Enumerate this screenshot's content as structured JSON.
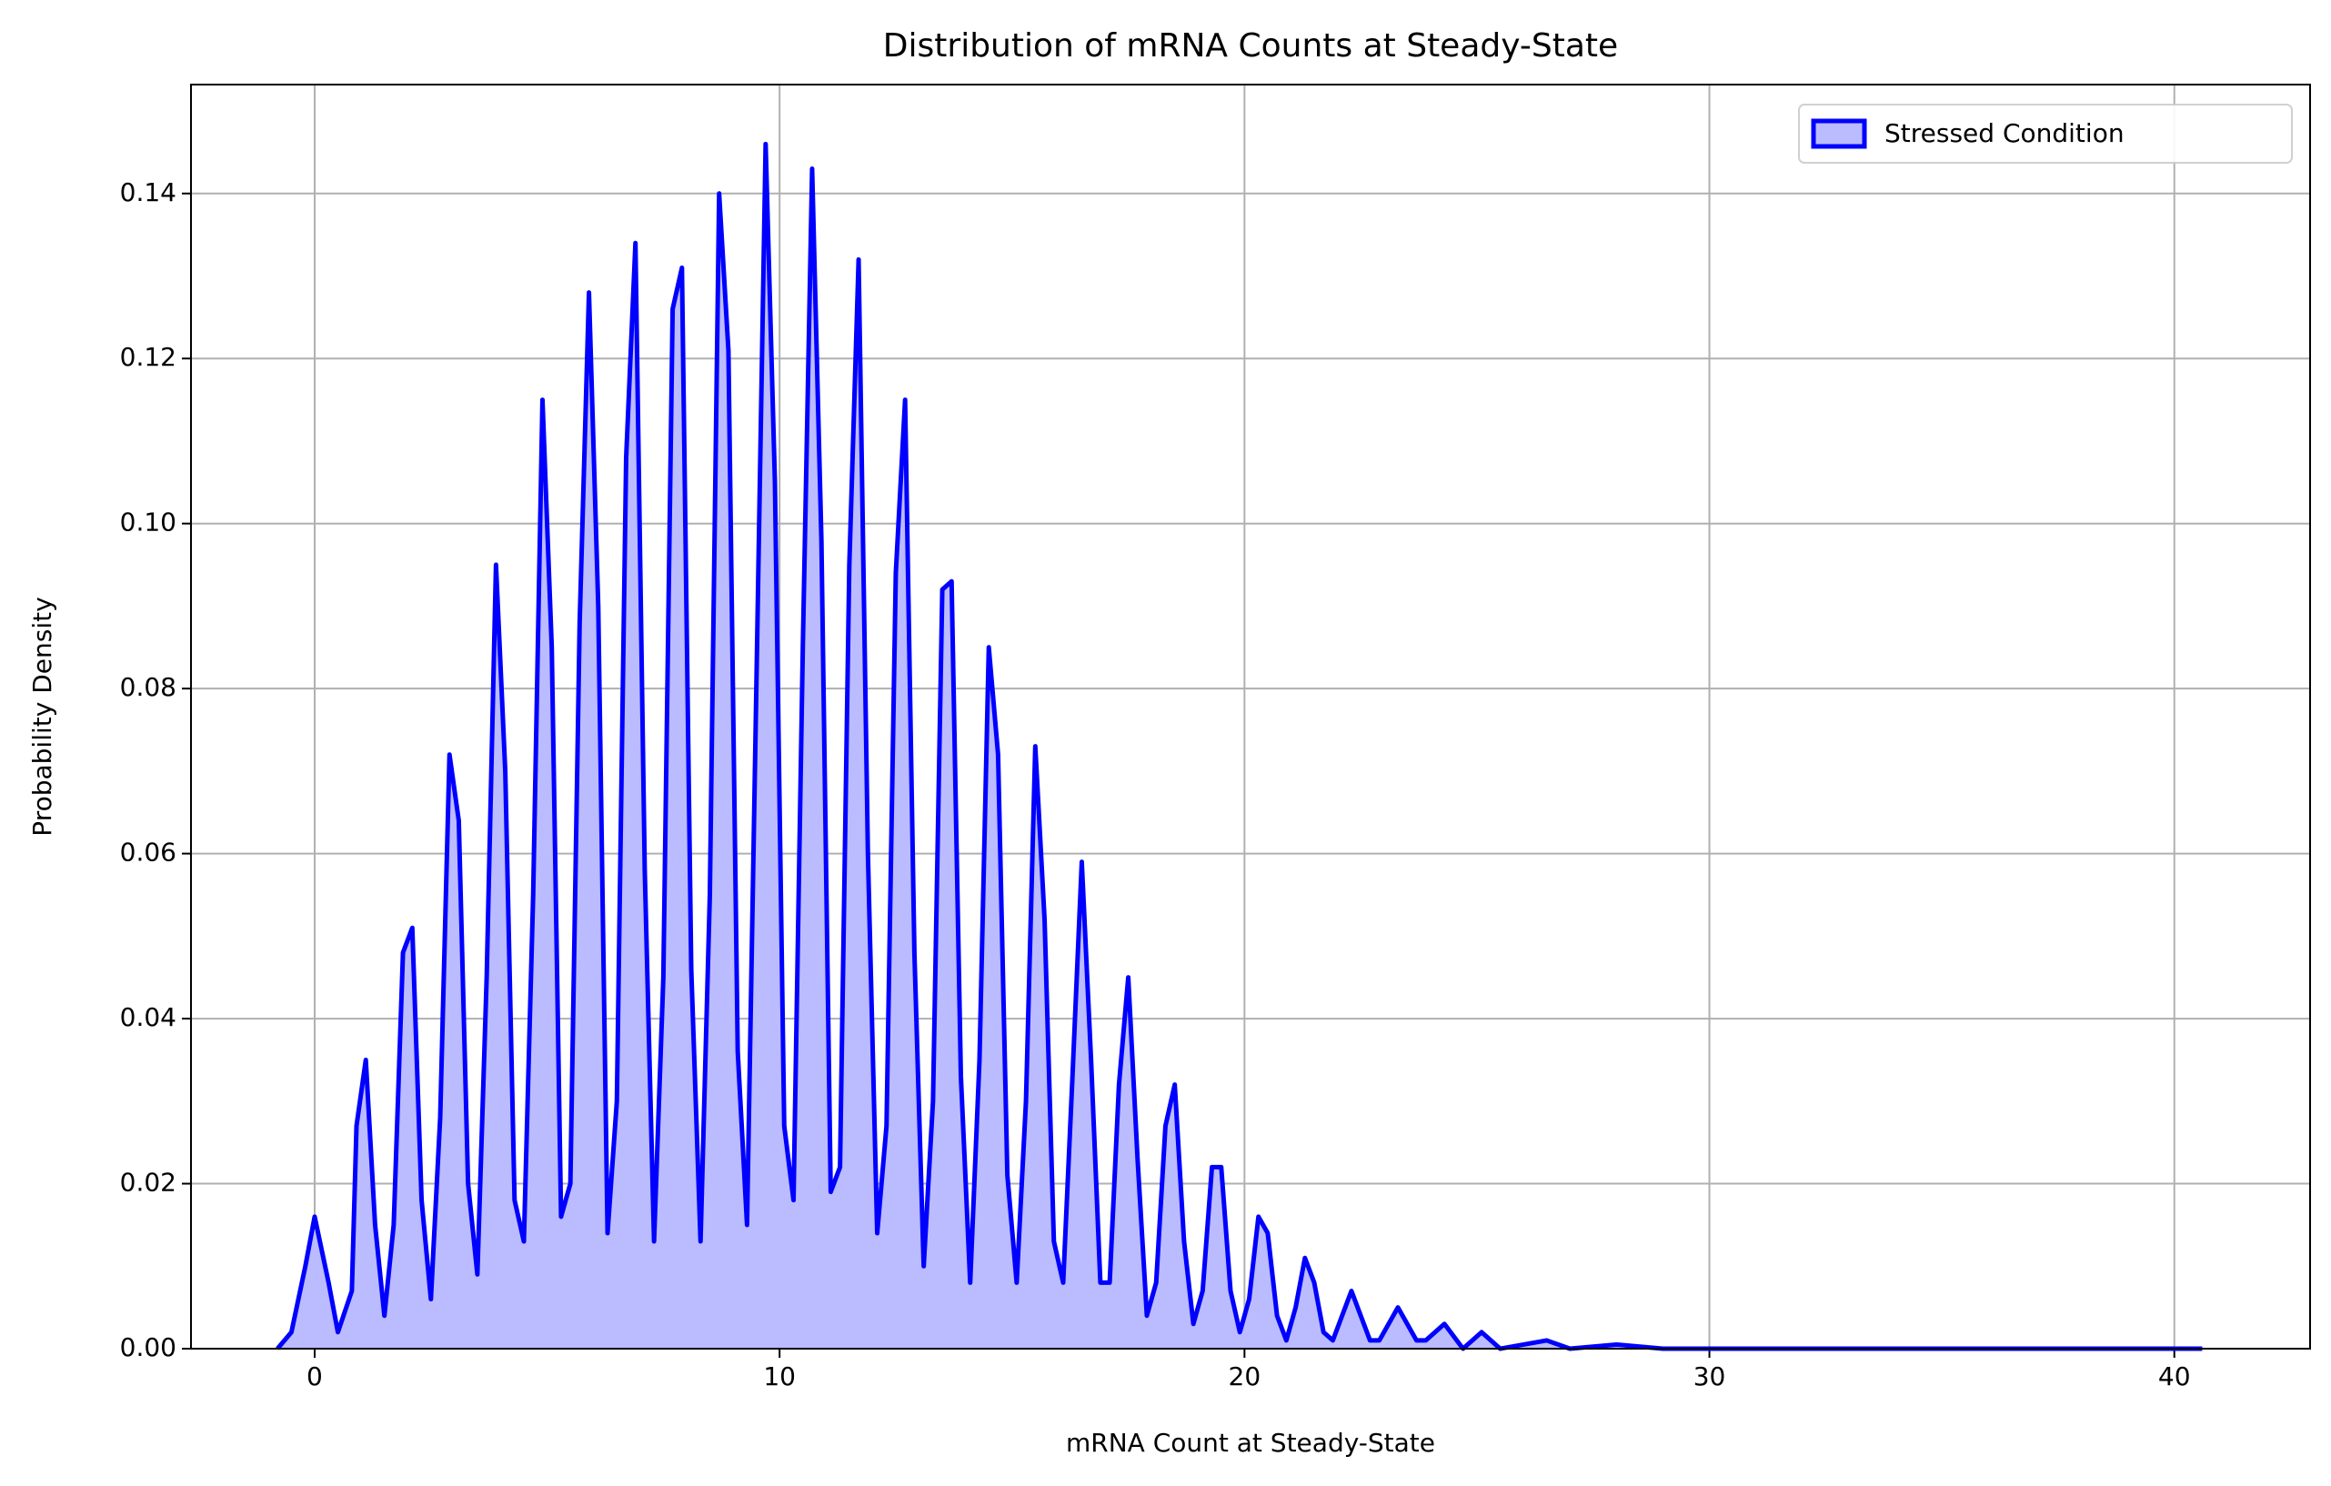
{
  "chart_data": {
    "type": "area",
    "title": "Distribution of mRNA Counts at Steady-State",
    "xlabel": "mRNA Count at Steady-State",
    "ylabel": "Probability Density",
    "x": [
      -0.8,
      -0.5,
      -0.2,
      0,
      0.3,
      0.5,
      0.8,
      0.9,
      1.1,
      1.3,
      1.5,
      1.7,
      1.9,
      2.1,
      2.3,
      2.5,
      2.7,
      2.9,
      3.1,
      3.3,
      3.5,
      3.7,
      3.9,
      4.1,
      4.3,
      4.5,
      4.7,
      4.9,
      5.1,
      5.3,
      5.5,
      5.7,
      5.9,
      6.1,
      6.3,
      6.5,
      6.7,
      6.9,
      7.1,
      7.3,
      7.5,
      7.7,
      7.9,
      8.1,
      8.3,
      8.5,
      8.7,
      8.9,
      9.1,
      9.3,
      9.5,
      9.7,
      9.9,
      10.1,
      10.3,
      10.5,
      10.7,
      10.9,
      11.1,
      11.3,
      11.5,
      11.7,
      11.9,
      12.1,
      12.3,
      12.5,
      12.7,
      12.9,
      13.1,
      13.3,
      13.5,
      13.7,
      13.9,
      14.1,
      14.3,
      14.5,
      14.7,
      14.9,
      15.1,
      15.3,
      15.5,
      15.7,
      15.9,
      16.1,
      16.3,
      16.5,
      16.7,
      16.9,
      17.1,
      17.3,
      17.5,
      17.7,
      17.9,
      18.1,
      18.3,
      18.5,
      18.7,
      18.9,
      19.1,
      19.3,
      19.5,
      19.7,
      19.9,
      20.1,
      20.3,
      20.5,
      20.7,
      20.9,
      21.1,
      21.3,
      21.5,
      21.7,
      21.9,
      22.3,
      22.7,
      22.9,
      23.3,
      23.7,
      23.9,
      24.3,
      24.7,
      25.1,
      25.5,
      26.5,
      27,
      28,
      29,
      40.6
    ],
    "series": [
      {
        "name": "Stressed Condition",
        "color": "#0000ff",
        "fill_color": "#bbbbff",
        "values": [
          0,
          0.002,
          0.01,
          0.016,
          0.008,
          0.002,
          0.007,
          0.027,
          0.035,
          0.015,
          0.004,
          0.015,
          0.048,
          0.051,
          0.018,
          0.006,
          0.028,
          0.072,
          0.064,
          0.02,
          0.009,
          0.045,
          0.095,
          0.07,
          0.018,
          0.013,
          0.055,
          0.115,
          0.085,
          0.016,
          0.02,
          0.088,
          0.128,
          0.09,
          0.014,
          0.03,
          0.108,
          0.134,
          0.058,
          0.013,
          0.045,
          0.126,
          0.131,
          0.046,
          0.013,
          0.055,
          0.14,
          0.121,
          0.036,
          0.015,
          0.08,
          0.146,
          0.105,
          0.027,
          0.018,
          0.085,
          0.143,
          0.098,
          0.019,
          0.022,
          0.095,
          0.132,
          0.06,
          0.014,
          0.027,
          0.094,
          0.115,
          0.048,
          0.01,
          0.03,
          0.092,
          0.093,
          0.033,
          0.008,
          0.035,
          0.085,
          0.072,
          0.021,
          0.008,
          0.03,
          0.073,
          0.052,
          0.013,
          0.008,
          0.033,
          0.059,
          0.035,
          0.008,
          0.008,
          0.032,
          0.045,
          0.023,
          0.004,
          0.008,
          0.027,
          0.032,
          0.013,
          0.003,
          0.007,
          0.022,
          0.022,
          0.007,
          0.002,
          0.006,
          0.016,
          0.014,
          0.004,
          0.001,
          0.005,
          0.011,
          0.008,
          0.002,
          0.001,
          0.007,
          0.001,
          0.001,
          0.005,
          0.001,
          0.001,
          0.003,
          0,
          0.002,
          0,
          0.001,
          0,
          0.0005,
          0,
          0
        ]
      }
    ],
    "xlim": [
      -2.66,
      42.92
    ],
    "ylim": [
      0,
      0.1532
    ],
    "xticks": [
      0,
      10,
      20,
      30,
      40
    ],
    "yticks": [
      {
        "value": 0,
        "label": "0.00"
      },
      0.02,
      0.04,
      0.06,
      0.08,
      {
        "value": 0.1,
        "label": "0.10"
      },
      0.12,
      0.14
    ],
    "grid": true,
    "legend": "upper right"
  }
}
